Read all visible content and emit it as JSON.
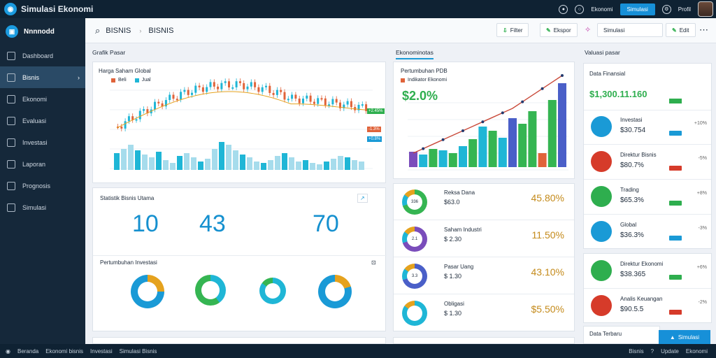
{
  "app": {
    "title": "Simulasi Ekonomi"
  },
  "header": {
    "action_button": "Simulasi",
    "user_label": "Profil",
    "status_label": "Ekonomi"
  },
  "sidebar": {
    "title": "Nnnnodd",
    "items": [
      {
        "label": "Dashboard",
        "icon": "home-icon"
      },
      {
        "label": "Bisnis",
        "icon": "business-icon"
      },
      {
        "label": "Ekonomi",
        "icon": "economy-icon"
      },
      {
        "label": "Evaluasi",
        "icon": "evaluation-icon"
      },
      {
        "label": "Investasi",
        "icon": "investment-icon"
      },
      {
        "label": "Laporan",
        "icon": "report-icon"
      },
      {
        "label": "Prognosis",
        "icon": "forecast-icon"
      },
      {
        "label": "Simulasi",
        "icon": "simulation-icon"
      }
    ]
  },
  "search": {
    "query": "BISNIS",
    "crumb": "BISNIS"
  },
  "toolbar": {
    "filter_label": "Filter",
    "export_label": "Ekspor",
    "field_label": "Simulasi",
    "edit_label": "Edit"
  },
  "sections": {
    "market": "Grafik Pasar",
    "economy": "Ekonominotas",
    "valuation": "Valuasi pasar"
  },
  "stock_card": {
    "title": "Harga Saham Global",
    "legend": [
      {
        "label": "Beli",
        "color": "#e0633a"
      },
      {
        "label": "Jual",
        "color": "#1fb6d6"
      }
    ],
    "price_tags": [
      "+2.45%",
      "-1.3%",
      "+0.8%"
    ]
  },
  "stats_card": {
    "title": "Statistik Bisnis Utama",
    "values": [
      "10",
      "43",
      "70"
    ],
    "sub_title": "Pertumbuhan Investasi"
  },
  "growth_card": {
    "title": "Pertumbuhan PDB",
    "headline": "$2.0%",
    "legend": "Indikator Ekonomi"
  },
  "companies": [
    {
      "name": "Reksa Dana",
      "value": "$63.0",
      "pct": "45.80%",
      "ring": "#35b552",
      "label": "336"
    },
    {
      "name": "Saham Industri",
      "value": "$ 2.30",
      "pct": "11.50%",
      "ring": "#7a4dbb",
      "label": "2.1"
    },
    {
      "name": "Pasar Uang",
      "value": "$ 1.30",
      "pct": "43.10%",
      "ring": "#4a5fc8",
      "label": "3.3"
    },
    {
      "name": "Obligasi",
      "value": "$ 1.30",
      "pct": "$5.50%",
      "ring": "#1fb6d6",
      "label": ""
    }
  ],
  "valuation": {
    "title": "Data Finansial",
    "headline": "$1,300.11.160",
    "rows": [
      {
        "name": "Investasi",
        "value": "$30.754",
        "change": "+10%",
        "icon": "chart-icon",
        "color": "#1a9ad6"
      },
      {
        "name": "Direktur Bisnis",
        "value": "$80.7%",
        "change": "-5%",
        "icon": "person-icon",
        "color": "#d63b2a"
      },
      {
        "name": "Trading",
        "value": "$65.3%",
        "change": "+8%",
        "icon": "gauge-icon",
        "color": "#2eae4e"
      },
      {
        "name": "Global",
        "value": "$36.3%",
        "change": "-3%",
        "icon": "globe-icon",
        "color": "#1a9ad6"
      },
      {
        "name": "Direktur Ekonomi",
        "value": "$38.365",
        "change": "+6%",
        "icon": "person-icon",
        "color": "#2eae4e"
      },
      {
        "name": "Analis Keuangan",
        "value": "$90.5.5",
        "change": "-2%",
        "icon": "person-icon",
        "color": "#d63b2a"
      }
    ],
    "footer": "Data Terbaru"
  },
  "bottombar": {
    "items": [
      "Beranda",
      "Ekonomi bisnis",
      "Investasi",
      "Simulasi Bisnis"
    ],
    "right": [
      "Bisnis",
      "Update",
      "Ekonomi"
    ]
  },
  "fab": {
    "label": "Simulasi"
  }
}
